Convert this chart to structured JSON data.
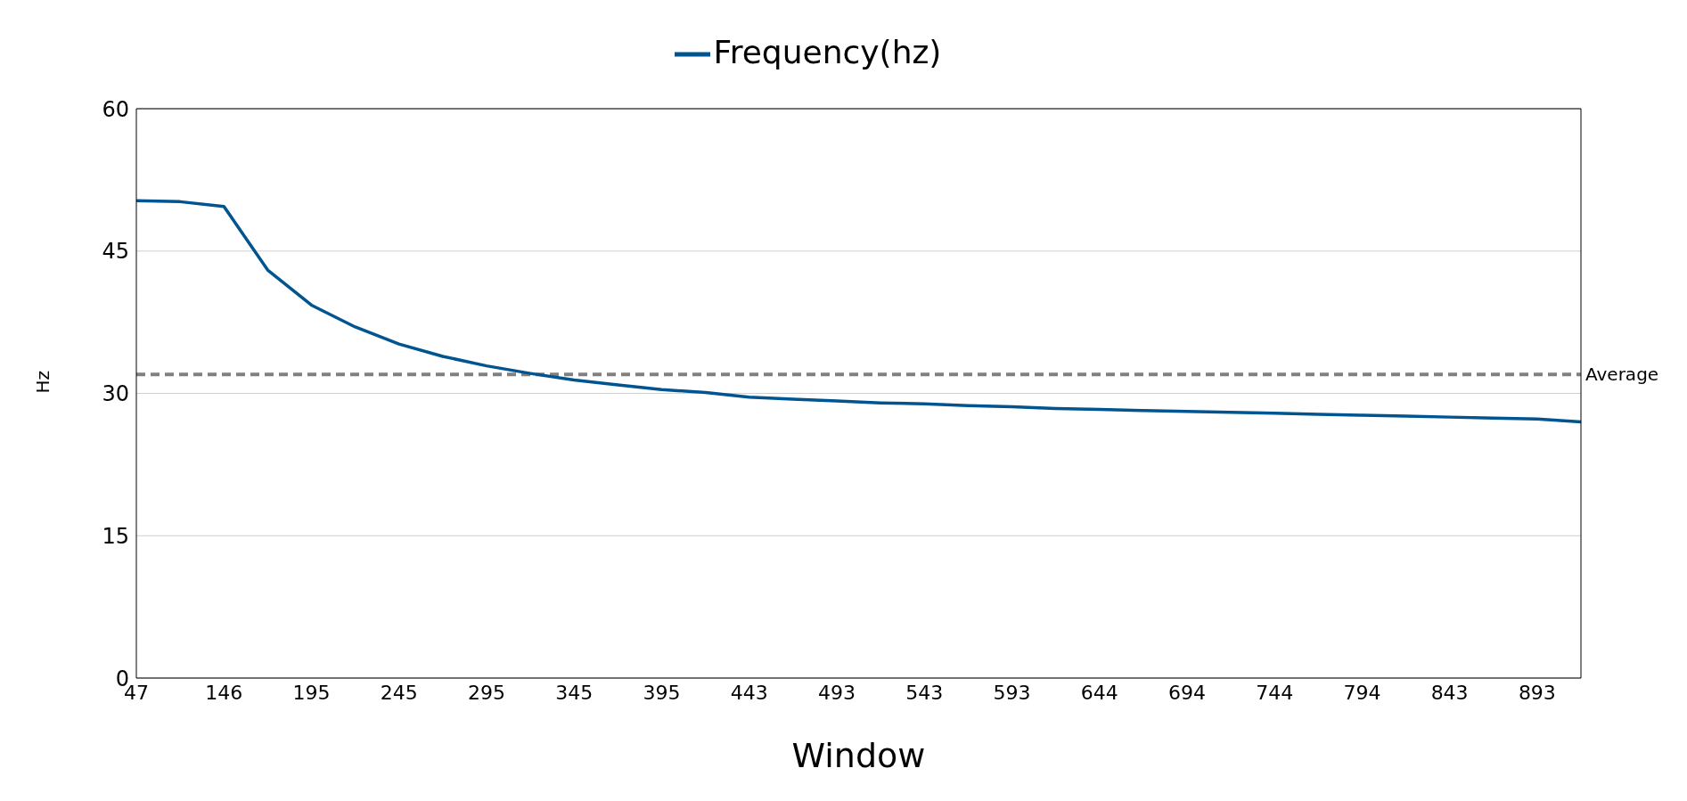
{
  "chart_data": {
    "type": "line",
    "xlabel": "Window",
    "ylabel": "Hz",
    "categories": [
      "47",
      null,
      "146",
      null,
      "195",
      null,
      "245",
      null,
      "295",
      null,
      "345",
      null,
      "395",
      null,
      "443",
      null,
      "493",
      null,
      "543",
      null,
      "593",
      null,
      "644",
      null,
      "694",
      null,
      "744",
      null,
      "794",
      null,
      "843",
      null,
      "893",
      null
    ],
    "series": [
      {
        "name": "Frequency(hz)",
        "color": "#00548f",
        "values": [
          50.3,
          50.2,
          49.7,
          43.0,
          39.3,
          37.0,
          35.2,
          33.9,
          32.9,
          32.1,
          31.4,
          30.9,
          30.4,
          30.1,
          29.6,
          29.4,
          29.2,
          29.0,
          28.9,
          28.7,
          28.6,
          28.4,
          28.3,
          28.2,
          28.1,
          28.0,
          27.9,
          27.8,
          27.7,
          27.6,
          27.5,
          27.4,
          27.3,
          27.0
        ]
      }
    ],
    "ylim": [
      0,
      60
    ],
    "yticks": [
      0,
      15,
      30,
      45,
      60
    ],
    "grid": "y",
    "legend": "top",
    "marker": "none",
    "line_style": "solid",
    "ref_lines": [
      {
        "axis": "y",
        "value": 32,
        "label": "Average",
        "color": "#808080",
        "line_style": "dashed"
      }
    ]
  }
}
